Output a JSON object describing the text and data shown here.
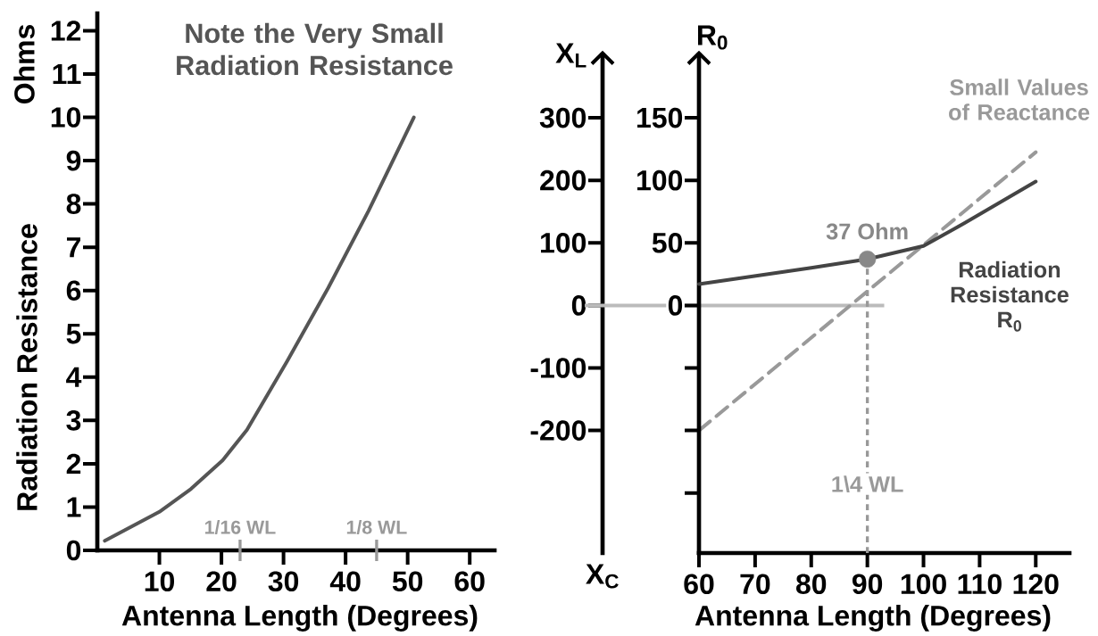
{
  "chart_data": [
    {
      "type": "line",
      "title": "Note the Very Small Radiation Resistance",
      "xlabel": "Antenna Length (Degrees)",
      "ylabel": "Radiation Resistance",
      "annotations": [
        "Ohms"
      ],
      "x": [
        1.2,
        10,
        15.1,
        20.2,
        24.1,
        30.6,
        37.2,
        43.7,
        51
      ],
      "series": [
        {
          "color": "#555555",
          "values": [
            0.22,
            0.89,
            1.42,
            2.08,
            2.78,
            4.37,
            6.06,
            7.84,
            10
          ]
        }
      ],
      "xlim": [
        0,
        64
      ],
      "ylim": [
        0,
        12.4
      ],
      "xticks": [
        10,
        20,
        30,
        40,
        50,
        60
      ],
      "yticks": [
        0,
        1,
        2,
        3,
        4,
        5,
        6,
        7,
        8,
        9,
        10,
        11,
        12
      ],
      "ref_lines": [
        {
          "axis": "x",
          "value": 23,
          "label": "1/16 WL",
          "color": "#999999"
        },
        {
          "axis": "x",
          "value": 45,
          "label": "1/8 WL",
          "color": "#999999"
        }
      ]
    },
    {
      "type": "line",
      "xlabel": "Antenna Length (Degrees)",
      "ylabel": "X$_{L}$",
      "y2label": "R$_{0}$",
      "annotations": [
        "X$_{C}$",
        {
          "text": "37 Ohm",
          "x": 90,
          "y": 74
        }
      ],
      "series": [
        {
          "name": "Radiation Resistance R$_{0}$",
          "color": "#444444",
          "axis": "y2",
          "x": [
            60,
            70.7,
            80,
            90,
            100,
            107.4,
            120
          ],
          "values": [
            17,
            24,
            30,
            37,
            47.5,
            66,
            99
          ]
        },
        {
          "name": "Small Values of Reactance",
          "color": "#999999",
          "line_style": "dashed",
          "x": [
            60,
            120
          ],
          "values": [
            -200,
            245
          ]
        },
        {
          "type": "scatter",
          "color": "#888888",
          "axis": "y2",
          "x": [
            90
          ],
          "values": [
            37
          ]
        }
      ],
      "xlim": [
        60,
        126
      ],
      "ylim": [
        -396,
        400
      ],
      "y2lim": [
        -198,
        200
      ],
      "xticks": [
        60,
        70,
        80,
        90,
        100,
        110,
        120
      ],
      "yticks": [
        -200,
        -100,
        0,
        100,
        200,
        300
      ],
      "y2ticks": [
        {
          "value": -150,
          "label": null
        },
        {
          "value": -100,
          "label": null
        },
        {
          "value": -50,
          "label": null
        },
        0,
        50,
        100,
        150
      ],
      "ref_lines": [
        {
          "axis": "y",
          "value": 0,
          "color": "#bbbbbb"
        },
        {
          "axis": "x",
          "value": 90,
          "label": "1\\4 WL",
          "color": "#999999",
          "line_style": "dashed"
        }
      ]
    }
  ]
}
